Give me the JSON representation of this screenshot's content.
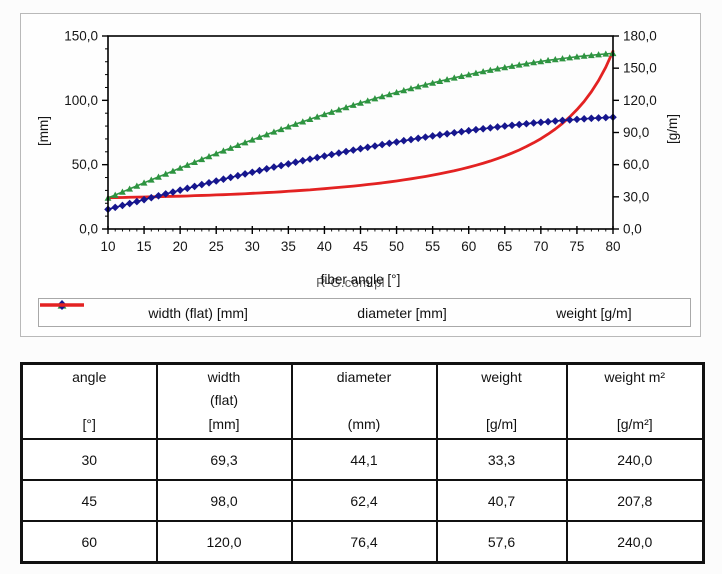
{
  "watermark": "R-G.com.pl",
  "chart": {
    "x_axis_title": "fiber angle [°]",
    "left_axis_unit": "[mm]",
    "right_axis_unit": "[g/m]",
    "legend": [
      {
        "label": "width (flat) [mm]",
        "color": "#2e9441",
        "marker": "triangle"
      },
      {
        "label": "diameter [mm]",
        "color": "#16168e",
        "marker": "diamond"
      },
      {
        "label": "weight [g/m]",
        "color": "#e32222",
        "marker": "none"
      }
    ]
  },
  "chart_data": {
    "type": "line",
    "title": "",
    "xlabel": "fiber angle [°]",
    "ylabel_left": "[mm]",
    "ylabel_right": "[g/m]",
    "xlim": [
      10,
      80
    ],
    "xtick_step": 5,
    "ylim_left": [
      0,
      150
    ],
    "ytick_step_left": 50,
    "minor_tick_left": 10,
    "ylim_right": [
      0,
      180
    ],
    "ytick_step_right": 30,
    "grid": false,
    "legend_position": "bottom",
    "decimal_separator": ",",
    "x": [
      10,
      11,
      12,
      13,
      14,
      15,
      16,
      17,
      18,
      19,
      20,
      21,
      22,
      23,
      24,
      25,
      26,
      27,
      28,
      29,
      30,
      31,
      32,
      33,
      34,
      35,
      36,
      37,
      38,
      39,
      40,
      41,
      42,
      43,
      44,
      45,
      46,
      47,
      48,
      49,
      50,
      51,
      52,
      53,
      54,
      55,
      56,
      57,
      58,
      59,
      60,
      61,
      62,
      63,
      64,
      65,
      66,
      67,
      68,
      69,
      70,
      71,
      72,
      73,
      74,
      75,
      76,
      77,
      78,
      79,
      80
    ],
    "series": [
      {
        "name": "width (flat) [mm]",
        "axis": "left",
        "marker": "triangle",
        "color": "#2e9441",
        "values": [
          24.1,
          26.4,
          28.8,
          31.2,
          33.5,
          35.9,
          38.2,
          40.5,
          42.8,
          45.1,
          47.4,
          49.7,
          51.9,
          54.2,
          56.4,
          58.6,
          60.8,
          62.9,
          65.1,
          67.2,
          69.3,
          71.4,
          73.4,
          75.5,
          77.5,
          79.5,
          81.5,
          83.4,
          85.3,
          87.2,
          89.1,
          90.9,
          92.7,
          94.5,
          96.3,
          98.0,
          99.7,
          101.4,
          103.0,
          104.6,
          106.2,
          107.7,
          109.2,
          110.7,
          112.1,
          113.5,
          114.9,
          116.2,
          117.5,
          118.8,
          120.0,
          121.2,
          122.4,
          123.5,
          124.6,
          125.6,
          126.6,
          127.6,
          128.5,
          129.4,
          130.2,
          131.1,
          131.8,
          132.5,
          133.2,
          133.9,
          134.5,
          135.0,
          135.6,
          136.1,
          136.5
        ]
      },
      {
        "name": "diameter [mm]",
        "axis": "left",
        "marker": "diamond",
        "color": "#16168e",
        "values": [
          15.3,
          16.8,
          18.3,
          19.8,
          21.3,
          22.8,
          24.3,
          25.8,
          27.3,
          28.7,
          30.2,
          31.6,
          33.1,
          34.5,
          35.9,
          37.3,
          38.7,
          40.1,
          41.4,
          42.8,
          44.1,
          45.4,
          46.8,
          48.1,
          49.3,
          50.6,
          51.9,
          53.1,
          54.3,
          55.5,
          56.7,
          57.9,
          59.0,
          60.2,
          61.3,
          62.4,
          63.5,
          64.5,
          65.6,
          66.6,
          67.6,
          68.6,
          69.5,
          70.5,
          71.4,
          72.3,
          73.2,
          74.0,
          74.8,
          75.6,
          76.4,
          77.2,
          77.9,
          78.6,
          79.3,
          80.0,
          80.6,
          81.2,
          81.8,
          82.4,
          82.9,
          83.4,
          83.9,
          84.4,
          84.8,
          85.2,
          85.6,
          86.0,
          86.3,
          86.6,
          86.9
        ]
      },
      {
        "name": "weight [g/m]",
        "axis": "right",
        "marker": "none",
        "color": "#e32222",
        "values": [
          29.2,
          29.3,
          29.4,
          29.6,
          29.7,
          29.8,
          30.0,
          30.1,
          30.3,
          30.5,
          30.6,
          30.8,
          31.1,
          31.3,
          31.5,
          31.8,
          32.0,
          32.3,
          32.6,
          32.9,
          33.3,
          33.6,
          34.0,
          34.3,
          34.7,
          35.2,
          35.6,
          36.1,
          36.5,
          37.1,
          37.6,
          38.2,
          38.8,
          39.4,
          40.0,
          40.7,
          41.5,
          42.2,
          43.0,
          43.9,
          44.8,
          45.8,
          46.8,
          47.9,
          49.0,
          50.2,
          51.5,
          52.9,
          54.3,
          55.9,
          57.6,
          59.4,
          61.3,
          63.4,
          65.7,
          68.1,
          70.8,
          73.7,
          76.9,
          80.4,
          84.2,
          88.5,
          93.2,
          98.5,
          104.5,
          111.3,
          119.0,
          128.0,
          138.5,
          150.9,
          165.8
        ]
      }
    ]
  },
  "table": {
    "headers": [
      {
        "title": "angle",
        "subtitle": "",
        "unit": "[°]"
      },
      {
        "title": "width",
        "subtitle": "(flat)",
        "unit": "[mm]"
      },
      {
        "title": "diameter",
        "subtitle": "",
        "unit": "(mm)"
      },
      {
        "title": "weight",
        "subtitle": "",
        "unit": "[g/m]"
      },
      {
        "title": "weight m²",
        "subtitle": "",
        "unit": "[g/m²]"
      }
    ],
    "rows": [
      [
        "30",
        "69,3",
        "44,1",
        "33,3",
        "240,0"
      ],
      [
        "45",
        "98,0",
        "62,4",
        "40,7",
        "207,8"
      ],
      [
        "60",
        "120,0",
        "76,4",
        "57,6",
        "240,0"
      ]
    ]
  }
}
